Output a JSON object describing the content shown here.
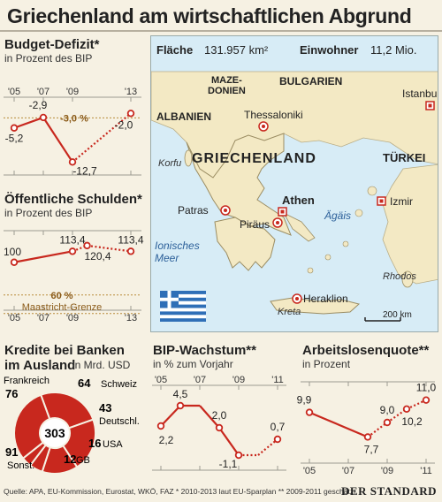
{
  "title": "Griechenland am wirtschaftlichen Abgrund",
  "colors": {
    "accent": "#c8281e",
    "sea": "#d7ecf6",
    "land": "#f3e9c4"
  },
  "map": {
    "area_label": "Fläche",
    "area_value": "131.957 km²",
    "pop_label": "Einwohner",
    "pop_value": "11,2 Mio.",
    "labels": {
      "mazedonien": "MAZE-\nDONIEN",
      "bulgarien": "BULGARIEN",
      "istanbul": "Istanbul",
      "albanien": "ALBANIEN",
      "thessaloniki": "Thessaloniki",
      "korfu": "Korfu",
      "griechenland": "GRIECHENLAND",
      "tuerkei": "TÜRKEI",
      "athen": "Athen",
      "patras": "Patras",
      "piraeus": "Piräus",
      "aegaeis": "Ägäis",
      "izmir": "Izmir",
      "ionisches": "Ionisches\nMeer",
      "rhodos": "Rhodos",
      "heraklion": "Heraklion",
      "kreta": "Kreta",
      "scale": "200 km"
    }
  },
  "footer": "Quelle: APA, EU-Kommission, Eurostat, WKÖ, FAZ  * 2010-2013 laut EU-Sparplan  ** 2009-2011 geschätzt",
  "brand": "DER STANDARD",
  "chart_data": [
    {
      "id": "budget",
      "type": "line",
      "title": "Budget-Defizit*",
      "subtitle": "in Prozent des BIP",
      "x": [
        "2005",
        "2007",
        "2009",
        "2013"
      ],
      "tick_labels": [
        "'05",
        "'07",
        "'09",
        "'13"
      ],
      "series": [
        {
          "values": [
            -5.2,
            -2.9,
            -12.7,
            -2.0
          ],
          "data_labels": [
            "-5,2",
            "-2,9",
            "-12,7",
            "-2,0"
          ]
        }
      ],
      "reference": {
        "value": -3.0,
        "label": "-3,0 %"
      },
      "ylim": [
        -14,
        0
      ]
    },
    {
      "id": "schulden",
      "type": "line",
      "title": "Öffentliche Schulden*",
      "subtitle": "in Prozent des BIP",
      "x": [
        "2005",
        "2009",
        "2010",
        "2013"
      ],
      "tick_labels": [
        "'05",
        "'07",
        "'09",
        "'13"
      ],
      "series": [
        {
          "values": [
            100,
            113.4,
            120.4,
            113.4
          ],
          "data_labels": [
            "100",
            "113,4",
            "120,4",
            "113,4"
          ]
        }
      ],
      "reference": {
        "value": 60,
        "label": "60 %",
        "name": "Maastricht-Grenze"
      },
      "ylim": [
        50,
        130
      ]
    },
    {
      "id": "kredite",
      "type": "pie",
      "title": "Kredite bei Banken\nim Ausland",
      "subtitle": "in Mrd. USD",
      "total": 303,
      "total_label": "303",
      "slices": [
        {
          "name": "Frankreich",
          "value": 76,
          "label": "76"
        },
        {
          "name": "Schweiz",
          "value": 64,
          "label": "64"
        },
        {
          "name": "Deutschl.",
          "value": 43,
          "label": "43"
        },
        {
          "name": "USA",
          "value": 16,
          "label": "16"
        },
        {
          "name": "GB",
          "value": 12,
          "label": "12"
        },
        {
          "name": "Sonst.",
          "value": 91,
          "label": "91"
        }
      ]
    },
    {
      "id": "bip",
      "type": "line",
      "title": "BIP-Wachstum**",
      "subtitle": "in % zum Vorjahr",
      "x": [
        "2005",
        "2006",
        "2007",
        "2008",
        "2009",
        "2010",
        "2011"
      ],
      "tick_labels": [
        "'05",
        "'07",
        "'09",
        "'11"
      ],
      "series": [
        {
          "values": [
            2.2,
            4.5,
            4.5,
            2.0,
            -1.1,
            -1.1,
            0.7
          ],
          "data_labels": [
            "2,2",
            "4,5",
            "",
            "2,0",
            "-1,1",
            "",
            "0,7"
          ]
        }
      ],
      "ylim": [
        -2,
        6
      ]
    },
    {
      "id": "arbeitslos",
      "type": "line",
      "title": "Arbeitslosenquote**",
      "subtitle": "in Prozent",
      "x": [
        "2005",
        "2008",
        "2009",
        "2010",
        "2011"
      ],
      "tick_labels": [
        "'05",
        "'07",
        "'09",
        "'11"
      ],
      "series": [
        {
          "values": [
            9.9,
            7.7,
            9.0,
            10.2,
            11.0
          ],
          "data_labels": [
            "9,9",
            "7,7",
            "9,0",
            "10,2",
            "11,0"
          ]
        }
      ],
      "ylim": [
        6,
        12
      ]
    }
  ]
}
